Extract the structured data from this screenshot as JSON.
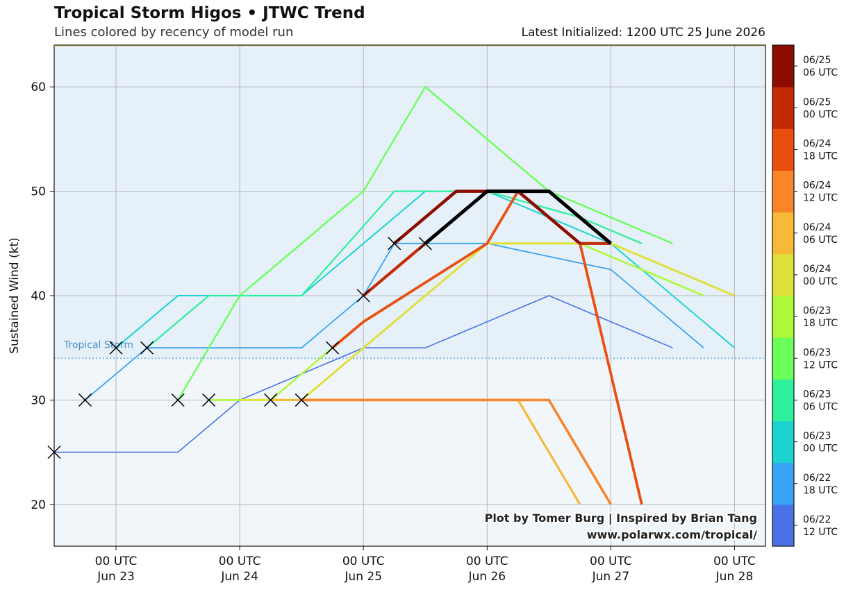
{
  "header": {
    "title": "Tropical Storm Higos • JTWC Trend",
    "subtitle": "Lines colored by recency of model run",
    "initialized": "Latest Initialized: 1200 UTC 25 June 2026"
  },
  "credit": {
    "line1": "Plot by Tomer Burg | Inspired by Brian Tang",
    "line2": "www.polarwx.com/tropical/"
  },
  "chart_data": {
    "type": "line",
    "title": "Tropical Storm Higos • JTWC Trend",
    "subtitle": "Lines colored by recency of model run",
    "xlabel": "",
    "ylabel": "Sustained Wind (kt)",
    "xlim": [
      "2026-06-22 12:00",
      "2026-06-28 06:00"
    ],
    "ylim": [
      16,
      64
    ],
    "yticks": [
      20,
      30,
      40,
      50,
      60
    ],
    "xticks": [
      {
        "t": "2026-06-23 00:00",
        "line1": "00 UTC",
        "line2": "Jun 23"
      },
      {
        "t": "2026-06-24 00:00",
        "line1": "00 UTC",
        "line2": "Jun 24"
      },
      {
        "t": "2026-06-25 00:00",
        "line1": "00 UTC",
        "line2": "Jun 25"
      },
      {
        "t": "2026-06-26 00:00",
        "line1": "00 UTC",
        "line2": "Jun 26"
      },
      {
        "t": "2026-06-27 00:00",
        "line1": "00 UTC",
        "line2": "Jun 27"
      },
      {
        "t": "2026-06-28 00:00",
        "line1": "00 UTC",
        "line2": "Jun 28"
      }
    ],
    "grid": true,
    "threshold": {
      "value": 34,
      "label": "Tropical Storm",
      "color": "#7fb8e6"
    },
    "colorbar": [
      {
        "line1": "06/22",
        "line2": "12 UTC",
        "color": "#4a72e6"
      },
      {
        "line1": "06/22",
        "line2": "18 UTC",
        "color": "#36a3f4"
      },
      {
        "line1": "06/23",
        "line2": "00 UTC",
        "color": "#1dd3d1"
      },
      {
        "line1": "06/23",
        "line2": "06 UTC",
        "color": "#2eef9b"
      },
      {
        "line1": "06/23",
        "line2": "12 UTC",
        "color": "#6bff5c"
      },
      {
        "line1": "06/23",
        "line2": "18 UTC",
        "color": "#adf93a"
      },
      {
        "line1": "06/24",
        "line2": "00 UTC",
        "color": "#dfe03a"
      },
      {
        "line1": "06/24",
        "line2": "06 UTC",
        "color": "#f8b838"
      },
      {
        "line1": "06/24",
        "line2": "12 UTC",
        "color": "#fa8428"
      },
      {
        "line1": "06/24",
        "line2": "18 UTC",
        "color": "#e9500f"
      },
      {
        "line1": "06/25",
        "line2": "00 UTC",
        "color": "#c42a04"
      },
      {
        "line1": "06/25",
        "line2": "06 UTC",
        "color": "#8c0c00"
      }
    ],
    "series": [
      {
        "color": "#4a72e6",
        "width": 1.6,
        "x": [
          "2026-06-22 12:00",
          "2026-06-23 06:00",
          "2026-06-23 12:00",
          "2026-06-24 00:00",
          "2026-06-25 00:00",
          "2026-06-25 12:00",
          "2026-06-26 00:00",
          "2026-06-26 12:00",
          "2026-06-27 00:00",
          "2026-06-27 12:00"
        ],
        "y": [
          25,
          25,
          25,
          30,
          35,
          35,
          37.5,
          40,
          37.5,
          35
        ]
      },
      {
        "color": "#36a3f4",
        "width": 1.8,
        "x": [
          "2026-06-22 18:00",
          "2026-06-23 00:00",
          "2026-06-23 06:00",
          "2026-06-23 12:00",
          "2026-06-24 00:00",
          "2026-06-24 12:00",
          "2026-06-25 00:00",
          "2026-06-25 06:00",
          "2026-06-25 12:00",
          "2026-06-26 00:00",
          "2026-06-27 00:00",
          "2026-06-27 18:00"
        ],
        "y": [
          30,
          32.5,
          35,
          35,
          35,
          35,
          40,
          45,
          45,
          45,
          42.5,
          35
        ]
      },
      {
        "color": "#1dd3d1",
        "width": 2.0,
        "x": [
          "2026-06-23 00:00",
          "2026-06-23 12:00",
          "2026-06-24 00:00",
          "2026-06-24 12:00",
          "2026-06-25 00:00",
          "2026-06-25 12:00",
          "2026-06-26 00:00",
          "2026-06-26 12:00",
          "2026-06-27 00:00",
          "2026-06-28 00:00"
        ],
        "y": [
          35,
          40,
          40,
          40,
          45,
          50,
          50,
          47.5,
          45,
          35
        ]
      },
      {
        "color": "#2eef9b",
        "width": 2.2,
        "x": [
          "2026-06-23 06:00",
          "2026-06-23 18:00",
          "2026-06-24 00:00",
          "2026-06-24 12:00",
          "2026-06-25 06:00",
          "2026-06-25 18:00",
          "2026-06-26 00:00",
          "2026-06-26 18:00",
          "2026-06-27 06:00"
        ],
        "y": [
          35,
          40,
          40,
          40,
          50,
          50,
          50,
          47.5,
          45
        ]
      },
      {
        "color": "#6bff5c",
        "width": 2.4,
        "x": [
          "2026-06-23 12:00",
          "2026-06-24 00:00",
          "2026-06-25 00:00",
          "2026-06-25 12:00",
          "2026-06-26 00:00",
          "2026-06-26 12:00",
          "2026-06-27 12:00"
        ],
        "y": [
          30,
          40,
          50,
          60,
          55,
          50,
          45
        ]
      },
      {
        "color": "#adf93a",
        "width": 2.6,
        "x": [
          "2026-06-23 18:00",
          "2026-06-24 00:00",
          "2026-06-24 06:00",
          "2026-06-25 00:00",
          "2026-06-26 00:00",
          "2026-06-26 18:00",
          "2026-06-27 18:00"
        ],
        "y": [
          30,
          30,
          30,
          37.5,
          45,
          45,
          40
        ]
      },
      {
        "color": "#dfe03a",
        "width": 3.0,
        "x": [
          "2026-06-24 00:00",
          "2026-06-24 12:00",
          "2026-06-25 00:00",
          "2026-06-26 00:00",
          "2026-06-27 00:00",
          "2026-06-28 00:00"
        ],
        "y": [
          30,
          30,
          35,
          45,
          45,
          40
        ]
      },
      {
        "color": "#f8b838",
        "width": 3.2,
        "x": [
          "2026-06-24 06:00",
          "2026-06-25 00:00",
          "2026-06-25 18:00",
          "2026-06-26 06:00",
          "2026-06-26 18:00"
        ],
        "y": [
          30,
          30,
          30,
          30,
          20
        ]
      },
      {
        "color": "#fa8428",
        "width": 3.6,
        "x": [
          "2026-06-24 12:00",
          "2026-06-25 00:00",
          "2026-06-26 00:00",
          "2026-06-26 12:00",
          "2026-06-27 00:00"
        ],
        "y": [
          30,
          30,
          30,
          30,
          20
        ]
      },
      {
        "color": "#e9500f",
        "width": 3.8,
        "x": [
          "2026-06-24 18:00",
          "2026-06-25 00:00",
          "2026-06-26 00:00",
          "2026-06-26 06:00",
          "2026-06-26 18:00",
          "2026-06-27 06:00"
        ],
        "y": [
          35,
          37.5,
          45,
          50,
          45,
          20
        ]
      },
      {
        "color": "#c42a04",
        "width": 4.2,
        "x": [
          "2026-06-25 00:00",
          "2026-06-25 12:00",
          "2026-06-26 00:00",
          "2026-06-26 06:00",
          "2026-06-26 18:00",
          "2026-06-27 00:00"
        ],
        "y": [
          40,
          45,
          50,
          50,
          45,
          45
        ]
      },
      {
        "color": "#8c0c00",
        "width": 4.5,
        "x": [
          "2026-06-25 06:00",
          "2026-06-25 18:00",
          "2026-06-26 06:00",
          "2026-06-26 18:00"
        ],
        "y": [
          45,
          50,
          50,
          45
        ]
      },
      {
        "color": "#000000",
        "width": 5.0,
        "x": [
          "2026-06-25 12:00",
          "2026-06-26 00:00",
          "2026-06-26 12:00",
          "2026-06-27 00:00"
        ],
        "y": [
          45,
          50,
          50,
          45
        ]
      }
    ],
    "start_markers": {
      "x": [
        "2026-06-22 12:00",
        "2026-06-22 18:00",
        "2026-06-23 00:00",
        "2026-06-23 06:00",
        "2026-06-23 12:00",
        "2026-06-23 18:00",
        "2026-06-24 06:00",
        "2026-06-24 12:00",
        "2026-06-24 18:00",
        "2026-06-25 00:00",
        "2026-06-25 06:00",
        "2026-06-25 12:00"
      ],
      "y": [
        25,
        30,
        35,
        35,
        30,
        30,
        30,
        30,
        35,
        40,
        45,
        45
      ]
    }
  }
}
